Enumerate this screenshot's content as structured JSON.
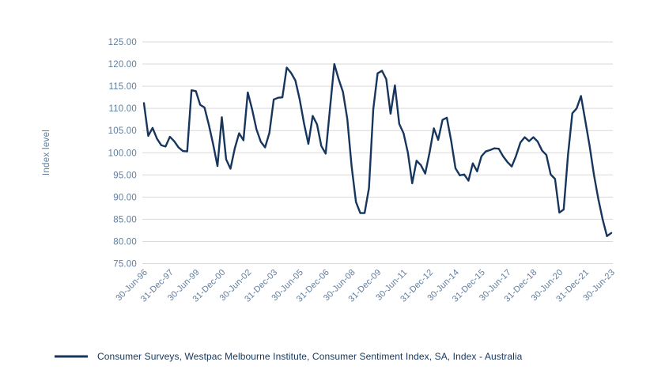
{
  "chart": {
    "y_axis_title": "Index level",
    "legend_label": "Consumer Surveys, Westpac Melbourne Institute, Consumer Sentiment Index, SA, Index - Australia",
    "colors": {
      "line": "#17365d",
      "axis_text": "#5f7d9e",
      "legend_text": "#17365d",
      "gridline": "#d9d9d9",
      "background": "#ffffff"
    }
  },
  "chart_data": {
    "type": "line",
    "title": "",
    "xlabel": "",
    "ylabel": "Index level",
    "ylim": [
      75,
      125
    ],
    "grid": "horizontal",
    "legend_position": "bottom-left",
    "y_tick_labels": [
      "125.00",
      "120.00",
      "115.00",
      "110.00",
      "105.00",
      "100.00",
      "95.00",
      "90.00",
      "85.00",
      "80.00",
      "75.00"
    ],
    "x_tick_labels": [
      "30-Jun-96",
      "31-Dec-97",
      "30-Jun-99",
      "31-Dec-00",
      "30-Jun-02",
      "31-Dec-03",
      "30-Jun-05",
      "31-Dec-06",
      "30-Jun-08",
      "31-Dec-09",
      "30-Jun-11",
      "31-Dec-12",
      "30-Jun-14",
      "31-Dec-15",
      "30-Jun-17",
      "31-Dec-18",
      "30-Jun-20",
      "31-Dec-21",
      "30-Jun-23"
    ],
    "frequency": "quarterly",
    "start_label": "30-Jun-96",
    "end_label": "30-Jun-23",
    "series": [
      {
        "name": "Consumer Surveys, Westpac Melbourne Institute, Consumer Sentiment Index, SA, Index - Australia",
        "values": [
          111.2,
          103.8,
          105.6,
          103.2,
          101.7,
          101.4,
          103.6,
          102.6,
          101.2,
          100.4,
          100.3,
          114.1,
          113.9,
          110.8,
          110.2,
          106.3,
          101.9,
          97.0,
          108.0,
          98.5,
          96.4,
          101.0,
          104.4,
          102.8,
          113.6,
          109.8,
          105.3,
          102.5,
          101.2,
          104.5,
          112.0,
          112.4,
          112.5,
          119.2,
          118.0,
          116.3,
          112.0,
          106.6,
          102.0,
          108.3,
          106.4,
          101.5,
          99.8,
          110.0,
          120.0,
          116.6,
          113.7,
          107.6,
          96.9,
          88.9,
          86.4,
          86.4,
          92.0,
          109.8,
          117.9,
          118.5,
          116.6,
          108.8,
          115.2,
          106.5,
          104.4,
          100.0,
          93.1,
          98.2,
          97.2,
          95.3,
          100.0,
          105.5,
          102.9,
          107.4,
          107.9,
          102.7,
          96.5,
          94.9,
          95.1,
          93.7,
          97.6,
          95.8,
          99.2,
          100.3,
          100.6,
          101.0,
          100.9,
          99.2,
          97.9,
          96.9,
          99.3,
          102.3,
          103.5,
          102.6,
          103.5,
          102.5,
          100.5,
          99.5,
          95.1,
          94.1,
          86.5,
          87.2,
          99.5,
          108.9,
          110.0,
          112.8,
          107.2,
          101.5,
          95.0,
          89.6,
          85.0,
          81.2,
          81.9
        ]
      }
    ]
  }
}
